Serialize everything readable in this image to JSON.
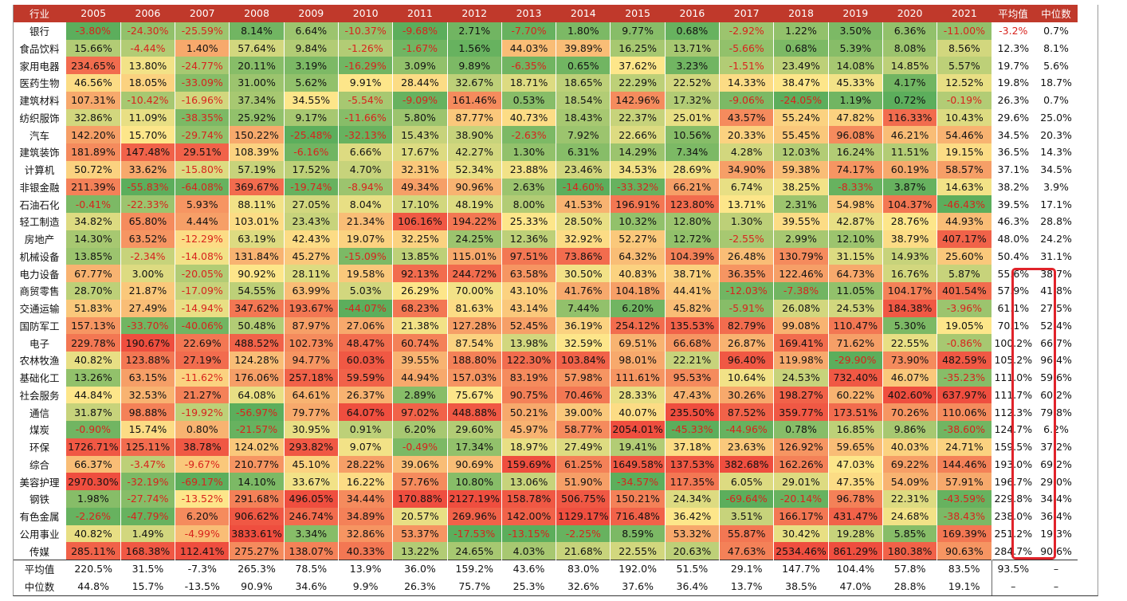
{
  "chart_data": {
    "type": "table",
    "colors": {
      "header_bg": "#c0392b",
      "neg_text": "#d8231d",
      "low": "#5cae5c",
      "mid": "#fde68a",
      "high": "#ef4e3f",
      "highlight": "#e0232a"
    },
    "header": {
      "industry": "行业",
      "mean": "平均值",
      "median": "中位数"
    },
    "years": [
      "2005",
      "2006",
      "2007",
      "2008",
      "2009",
      "2010",
      "2011",
      "2012",
      "2013",
      "2014",
      "2015",
      "2016",
      "2017",
      "2018",
      "2019",
      "2020",
      "2021"
    ],
    "rows": [
      {
        "name": "银行",
        "values": [
          "-3.80%",
          "-24.30%",
          "-25.59%",
          "8.14%",
          "6.64%",
          "-10.37%",
          "-9.68%",
          "2.71%",
          "-7.70%",
          "1.80%",
          "9.77%",
          "0.68%",
          "-2.92%",
          "1.22%",
          "3.50%",
          "6.36%",
          "-11.00%"
        ],
        "mean": "-3.2%",
        "median": "0.7%"
      },
      {
        "name": "食品饮料",
        "values": [
          "15.66%",
          "-4.44%",
          "1.40%",
          "57.64%",
          "9.84%",
          "-1.26%",
          "-1.67%",
          "1.56%",
          "44.03%",
          "39.89%",
          "16.25%",
          "13.71%",
          "-5.66%",
          "0.68%",
          "5.39%",
          "8.08%",
          "8.56%"
        ],
        "mean": "12.3%",
        "median": "8.1%"
      },
      {
        "name": "家用电器",
        "values": [
          "234.65%",
          "13.80%",
          "-24.77%",
          "20.11%",
          "3.19%",
          "-16.29%",
          "3.09%",
          "9.89%",
          "-6.35%",
          "0.65%",
          "37.62%",
          "3.23%",
          "-1.51%",
          "23.49%",
          "14.08%",
          "14.85%",
          "5.57%"
        ],
        "mean": "19.7%",
        "median": "5.6%"
      },
      {
        "name": "医药生物",
        "values": [
          "46.56%",
          "18.05%",
          "-33.09%",
          "31.00%",
          "5.62%",
          "9.91%",
          "28.44%",
          "32.67%",
          "18.71%",
          "18.65%",
          "22.29%",
          "22.52%",
          "14.33%",
          "38.47%",
          "45.33%",
          "4.17%",
          "12.52%"
        ],
        "mean": "19.8%",
        "median": "18.7%"
      },
      {
        "name": "建筑材料",
        "values": [
          "107.31%",
          "-10.42%",
          "-16.96%",
          "37.34%",
          "34.55%",
          "-5.54%",
          "-9.09%",
          "161.46%",
          "0.53%",
          "18.54%",
          "142.96%",
          "17.32%",
          "-9.06%",
          "-24.05%",
          "1.19%",
          "0.72%",
          "-0.19%"
        ],
        "mean": "26.3%",
        "median": "0.7%"
      },
      {
        "name": "纺织服饰",
        "values": [
          "32.86%",
          "11.09%",
          "-38.35%",
          "25.92%",
          "9.17%",
          "-11.66%",
          "5.80%",
          "87.77%",
          "40.73%",
          "18.43%",
          "22.37%",
          "25.01%",
          "43.57%",
          "55.24%",
          "47.82%",
          "116.33%",
          "10.43%"
        ],
        "mean": "29.6%",
        "median": "25.0%"
      },
      {
        "name": "汽车",
        "values": [
          "142.20%",
          "15.70%",
          "-29.74%",
          "150.22%",
          "-25.48%",
          "-32.13%",
          "15.43%",
          "38.90%",
          "-2.63%",
          "7.92%",
          "22.66%",
          "10.56%",
          "20.33%",
          "55.45%",
          "96.08%",
          "46.21%",
          "54.46%"
        ],
        "mean": "34.5%",
        "median": "20.3%"
      },
      {
        "name": "建筑装饰",
        "values": [
          "181.89%",
          "147.48%",
          "29.51%",
          "108.39%",
          "-6.16%",
          "6.66%",
          "17.67%",
          "42.27%",
          "1.30%",
          "6.31%",
          "14.29%",
          "7.34%",
          "4.28%",
          "12.03%",
          "16.24%",
          "11.51%",
          "19.15%"
        ],
        "mean": "36.5%",
        "median": "14.3%"
      },
      {
        "name": "计算机",
        "values": [
          "50.72%",
          "33.62%",
          "-15.80%",
          "57.19%",
          "17.52%",
          "4.70%",
          "32.31%",
          "52.34%",
          "23.88%",
          "23.46%",
          "34.53%",
          "28.69%",
          "34.90%",
          "59.38%",
          "74.17%",
          "60.19%",
          "58.57%"
        ],
        "mean": "37.1%",
        "median": "34.5%"
      },
      {
        "name": "非银金融",
        "values": [
          "211.39%",
          "-55.83%",
          "-64.08%",
          "369.67%",
          "-19.74%",
          "-8.94%",
          "49.34%",
          "90.96%",
          "2.63%",
          "-14.60%",
          "-33.32%",
          "66.21%",
          "6.74%",
          "38.25%",
          "-8.33%",
          "3.87%",
          "14.63%"
        ],
        "mean": "38.2%",
        "median": "3.9%"
      },
      {
        "name": "石油石化",
        "values": [
          "-0.41%",
          "-22.33%",
          "5.93%",
          "88.11%",
          "27.05%",
          "8.04%",
          "17.10%",
          "48.19%",
          "8.00%",
          "41.53%",
          "196.91%",
          "123.80%",
          "13.71%",
          "2.31%",
          "54.98%",
          "104.37%",
          "-46.43%"
        ],
        "mean": "39.5%",
        "median": "17.1%"
      },
      {
        "name": "轻工制造",
        "values": [
          "34.82%",
          "65.80%",
          "4.44%",
          "103.01%",
          "23.43%",
          "21.34%",
          "106.16%",
          "194.22%",
          "25.33%",
          "28.50%",
          "10.32%",
          "12.80%",
          "1.30%",
          "39.55%",
          "42.87%",
          "28.76%",
          "44.93%"
        ],
        "mean": "46.3%",
        "median": "28.8%"
      },
      {
        "name": "房地产",
        "values": [
          "14.30%",
          "63.52%",
          "-12.29%",
          "63.19%",
          "42.43%",
          "19.07%",
          "32.25%",
          "24.25%",
          "12.36%",
          "32.92%",
          "52.27%",
          "12.72%",
          "-2.55%",
          "2.99%",
          "12.10%",
          "38.79%",
          "407.17%"
        ],
        "mean": "48.0%",
        "median": "24.2%"
      },
      {
        "name": "机械设备",
        "values": [
          "13.85%",
          "-2.34%",
          "-14.08%",
          "131.84%",
          "45.27%",
          "-15.09%",
          "13.85%",
          "115.01%",
          "97.51%",
          "73.86%",
          "64.32%",
          "104.39%",
          "26.48%",
          "130.79%",
          "31.15%",
          "14.93%",
          "25.60%"
        ],
        "mean": "50.4%",
        "median": "31.1%"
      },
      {
        "name": "电力设备",
        "values": [
          "67.77%",
          "3.00%",
          "-20.05%",
          "90.92%",
          "28.11%",
          "19.58%",
          "92.13%",
          "244.72%",
          "63.58%",
          "30.50%",
          "40.83%",
          "38.71%",
          "36.35%",
          "122.46%",
          "64.73%",
          "16.76%",
          "5.87%"
        ],
        "mean": "55.6%",
        "median": "38.7%"
      },
      {
        "name": "商贸零售",
        "values": [
          "28.70%",
          "21.87%",
          "-17.09%",
          "54.55%",
          "63.99%",
          "5.03%",
          "26.29%",
          "70.00%",
          "43.10%",
          "41.76%",
          "104.18%",
          "44.41%",
          "-12.03%",
          "-7.38%",
          "11.05%",
          "104.17%",
          "401.54%"
        ],
        "mean": "57.9%",
        "median": "41.8%"
      },
      {
        "name": "交通运输",
        "values": [
          "51.83%",
          "27.49%",
          "-14.94%",
          "347.62%",
          "193.67%",
          "-44.07%",
          "68.23%",
          "81.63%",
          "43.14%",
          "7.44%",
          "6.20%",
          "45.82%",
          "-5.91%",
          "26.08%",
          "24.53%",
          "184.38%",
          "-3.96%"
        ],
        "mean": "61.1%",
        "median": "27.5%"
      },
      {
        "name": "国防军工",
        "values": [
          "157.13%",
          "-33.70%",
          "-40.06%",
          "50.48%",
          "87.97%",
          "27.06%",
          "21.38%",
          "127.28%",
          "52.45%",
          "36.19%",
          "254.12%",
          "135.53%",
          "82.79%",
          "99.08%",
          "110.47%",
          "5.30%",
          "19.05%"
        ],
        "mean": "70.1%",
        "median": "52.4%"
      },
      {
        "name": "电子",
        "values": [
          "229.78%",
          "190.67%",
          "22.69%",
          "488.52%",
          "102.73%",
          "48.47%",
          "60.74%",
          "87.54%",
          "13.98%",
          "32.59%",
          "69.51%",
          "66.68%",
          "26.87%",
          "169.41%",
          "71.62%",
          "22.55%",
          "-0.86%"
        ],
        "mean": "100.2%",
        "median": "66.7%"
      },
      {
        "name": "农林牧渔",
        "values": [
          "40.82%",
          "123.88%",
          "27.19%",
          "124.28%",
          "94.77%",
          "60.03%",
          "39.55%",
          "188.80%",
          "122.30%",
          "103.84%",
          "98.01%",
          "22.21%",
          "96.40%",
          "119.98%",
          "-29.90%",
          "73.90%",
          "482.59%"
        ],
        "mean": "105.2%",
        "median": "96.4%"
      },
      {
        "name": "基础化工",
        "values": [
          "13.26%",
          "63.15%",
          "-11.62%",
          "176.06%",
          "257.18%",
          "59.59%",
          "44.94%",
          "157.03%",
          "83.19%",
          "57.98%",
          "111.61%",
          "95.53%",
          "10.64%",
          "24.53%",
          "732.40%",
          "46.07%",
          "-35.23%"
        ],
        "mean": "111.0%",
        "median": "59.6%"
      },
      {
        "name": "社会服务",
        "values": [
          "44.84%",
          "32.53%",
          "21.27%",
          "64.08%",
          "64.61%",
          "26.37%",
          "2.89%",
          "75.67%",
          "90.75%",
          "70.46%",
          "28.33%",
          "47.43%",
          "30.26%",
          "198.27%",
          "60.22%",
          "402.60%",
          "637.97%"
        ],
        "mean": "111.7%",
        "median": "60.2%"
      },
      {
        "name": "通信",
        "values": [
          "31.87%",
          "98.88%",
          "-19.92%",
          "-56.97%",
          "79.77%",
          "64.07%",
          "97.02%",
          "448.88%",
          "50.21%",
          "39.00%",
          "40.07%",
          "235.50%",
          "87.52%",
          "359.77%",
          "173.51%",
          "70.26%",
          "110.06%"
        ],
        "mean": "112.3%",
        "median": "79.8%"
      },
      {
        "name": "煤炭",
        "values": [
          "-0.90%",
          "15.74%",
          "0.80%",
          "-21.57%",
          "30.95%",
          "0.91%",
          "6.20%",
          "29.60%",
          "45.97%",
          "58.77%",
          "2054.01%",
          "-45.33%",
          "-44.96%",
          "0.78%",
          "16.85%",
          "9.86%",
          "-38.60%"
        ],
        "mean": "124.7%",
        "median": "6.2%"
      },
      {
        "name": "环保",
        "values": [
          "1726.71%",
          "125.11%",
          "38.78%",
          "124.02%",
          "293.82%",
          "9.07%",
          "-0.49%",
          "17.34%",
          "18.97%",
          "27.49%",
          "19.41%",
          "37.18%",
          "23.63%",
          "126.92%",
          "59.65%",
          "40.03%",
          "24.71%"
        ],
        "mean": "159.5%",
        "median": "37.2%"
      },
      {
        "name": "综合",
        "values": [
          "66.37%",
          "-3.47%",
          "-9.67%",
          "210.77%",
          "45.10%",
          "28.22%",
          "39.06%",
          "90.69%",
          "159.69%",
          "61.25%",
          "1649.58%",
          "137.53%",
          "382.68%",
          "162.26%",
          "47.03%",
          "69.22%",
          "144.46%"
        ],
        "mean": "193.0%",
        "median": "69.2%"
      },
      {
        "name": "美容护理",
        "values": [
          "2970.30%",
          "-32.19%",
          "-69.17%",
          "14.10%",
          "33.67%",
          "16.22%",
          "57.76%",
          "10.80%",
          "13.06%",
          "51.90%",
          "-34.57%",
          "117.35%",
          "6.05%",
          "29.01%",
          "47.35%",
          "54.09%",
          "57.91%"
        ],
        "mean": "196.7%",
        "median": "29.0%"
      },
      {
        "name": "钢铁",
        "values": [
          "1.98%",
          "-27.74%",
          "-13.52%",
          "291.68%",
          "496.05%",
          "34.44%",
          "170.88%",
          "2127.19%",
          "158.78%",
          "506.75%",
          "150.21%",
          "24.34%",
          "-69.64%",
          "-20.14%",
          "96.78%",
          "22.31%",
          "-43.59%"
        ],
        "mean": "229.8%",
        "median": "34.4%"
      },
      {
        "name": "有色金属",
        "values": [
          "-2.26%",
          "-47.79%",
          "6.20%",
          "906.62%",
          "246.74%",
          "34.89%",
          "20.57%",
          "269.96%",
          "142.00%",
          "1129.17%",
          "716.48%",
          "36.42%",
          "3.51%",
          "166.17%",
          "431.47%",
          "24.68%",
          "-38.43%"
        ],
        "mean": "238.0%",
        "median": "36.4%"
      },
      {
        "name": "公用事业",
        "values": [
          "40.82%",
          "1.49%",
          "-4.99%",
          "3833.61%",
          "3.34%",
          "32.86%",
          "53.37%",
          "-17.53%",
          "-13.15%",
          "-2.25%",
          "8.59%",
          "53.32%",
          "55.87%",
          "30.42%",
          "19.28%",
          "5.85%",
          "169.39%"
        ],
        "mean": "251.2%",
        "median": "19.3%"
      },
      {
        "name": "传媒",
        "values": [
          "285.11%",
          "168.38%",
          "112.41%",
          "275.27%",
          "138.07%",
          "40.33%",
          "13.22%",
          "24.65%",
          "4.03%",
          "21.68%",
          "22.55%",
          "20.63%",
          "47.63%",
          "2534.46%",
          "861.29%",
          "180.38%",
          "90.63%"
        ],
        "mean": "284.7%",
        "median": "90.6%"
      }
    ],
    "summary": [
      {
        "label": "平均值",
        "values": [
          "220.5%",
          "31.5%",
          "-7.3%",
          "265.3%",
          "78.5%",
          "13.9%",
          "36.0%",
          "159.2%",
          "43.6%",
          "83.0%",
          "192.0%",
          "51.5%",
          "29.1%",
          "147.7%",
          "104.4%",
          "57.8%",
          "83.5%"
        ],
        "mean": "93.5%",
        "median": "–"
      },
      {
        "label": "中位数",
        "values": [
          "44.8%",
          "15.7%",
          "-13.5%",
          "90.9%",
          "34.6%",
          "9.9%",
          "26.3%",
          "75.7%",
          "25.3%",
          "32.6%",
          "37.6%",
          "36.4%",
          "13.7%",
          "38.5%",
          "47.0%",
          "28.8%",
          "19.1%"
        ],
        "mean": "–",
        "median": "–"
      }
    ]
  }
}
